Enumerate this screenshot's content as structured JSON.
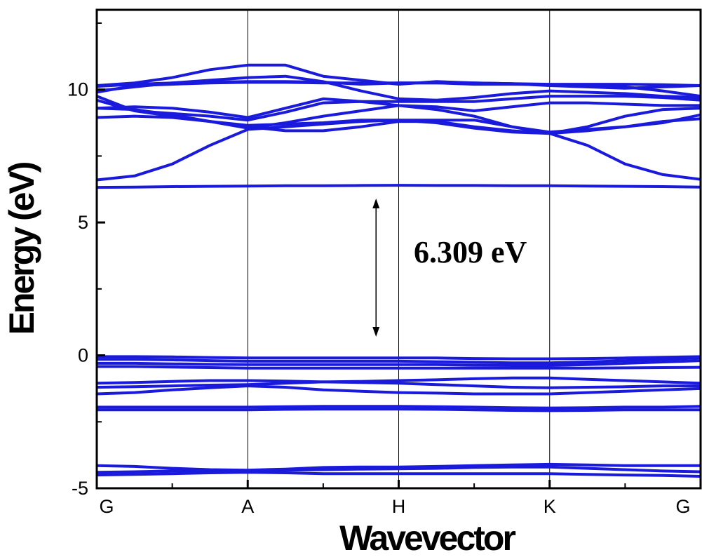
{
  "chart_data": {
    "type": "line",
    "xlabel": "Wavevector",
    "ylabel": "Energy (eV)",
    "x_ticks": [
      "G",
      "A",
      "H",
      "K",
      "G"
    ],
    "x_positions": [
      0,
      1,
      2,
      3,
      4
    ],
    "ylim": [
      -5,
      13
    ],
    "y_ticks": [
      {
        "value": -5,
        "label": "-5"
      },
      {
        "value": 0,
        "label": "0"
      },
      {
        "value": 5,
        "label": "5"
      },
      {
        "value": 10,
        "label": "10"
      }
    ],
    "grid": "vertical lines at high-symmetry points",
    "line_color": "#1a1adc",
    "annotation": {
      "text": "6.309 eV",
      "arrow_from": 0.7,
      "arrow_to": 5.9,
      "arrow_x": 1.85,
      "text_x": 2.1,
      "text_y": 3.9
    },
    "x": [
      0,
      0.25,
      0.5,
      0.75,
      1,
      1.25,
      1.5,
      1.75,
      2,
      2.25,
      2.5,
      2.75,
      3,
      3.25,
      3.5,
      3.75,
      4
    ],
    "series": [
      {
        "values": [
          -4.5,
          -4.48,
          -4.45,
          -4.42,
          -4.4,
          -4.42,
          -4.45,
          -4.45,
          -4.45,
          -4.45,
          -4.45,
          -4.45,
          -4.45,
          -4.48,
          -4.5,
          -4.52,
          -4.55
        ]
      },
      {
        "values": [
          -4.4,
          -4.38,
          -4.35,
          -4.35,
          -4.35,
          -4.32,
          -4.3,
          -4.28,
          -4.27,
          -4.25,
          -4.22,
          -4.2,
          -4.2,
          -4.25,
          -4.3,
          -4.35,
          -4.38
        ]
      },
      {
        "values": [
          -4.15,
          -4.18,
          -4.25,
          -4.3,
          -4.32,
          -4.28,
          -4.22,
          -4.2,
          -4.2,
          -4.18,
          -4.15,
          -4.12,
          -4.1,
          -4.12,
          -4.15,
          -4.15,
          -4.15
        ]
      },
      {
        "values": [
          -2.05,
          -2.05,
          -2.05,
          -2.05,
          -2.05,
          -2.03,
          -2.02,
          -2.02,
          -2.02,
          -2.03,
          -2.05,
          -2.07,
          -2.08,
          -2.07,
          -2.05,
          -2.05,
          -2.05
        ]
      },
      {
        "values": [
          -1.95,
          -1.95,
          -1.95,
          -1.95,
          -1.95,
          -1.93,
          -1.92,
          -1.92,
          -1.92,
          -1.93,
          -1.95,
          -1.97,
          -1.98,
          -1.97,
          -1.95,
          -1.95,
          -1.92
        ]
      },
      {
        "values": [
          -1.45,
          -1.4,
          -1.3,
          -1.22,
          -1.15,
          -1.2,
          -1.3,
          -1.35,
          -1.4,
          -1.42,
          -1.45,
          -1.45,
          -1.45,
          -1.4,
          -1.35,
          -1.3,
          -1.25
        ]
      },
      {
        "values": [
          -1.2,
          -1.18,
          -1.15,
          -1.12,
          -1.1,
          -1.05,
          -1.0,
          -0.98,
          -0.95,
          -0.92,
          -0.88,
          -0.85,
          -0.85,
          -0.9,
          -0.95,
          -1.0,
          -1.05
        ]
      },
      {
        "values": [
          -1.05,
          -1.02,
          -0.98,
          -0.95,
          -0.95,
          -0.97,
          -1.0,
          -1.02,
          -1.05,
          -1.1,
          -1.15,
          -1.2,
          -1.22,
          -1.2,
          -1.18,
          -1.15,
          -1.15
        ]
      },
      {
        "values": [
          -0.42,
          -0.42,
          -0.44,
          -0.46,
          -0.48,
          -0.48,
          -0.48,
          -0.48,
          -0.48,
          -0.48,
          -0.48,
          -0.48,
          -0.48,
          -0.48,
          -0.47,
          -0.46,
          -0.45
        ]
      },
      {
        "values": [
          -0.3,
          -0.3,
          -0.32,
          -0.34,
          -0.35,
          -0.35,
          -0.35,
          -0.35,
          -0.35,
          -0.35,
          -0.37,
          -0.38,
          -0.38,
          -0.35,
          -0.3,
          -0.25,
          -0.2
        ]
      },
      {
        "values": [
          -0.15,
          -0.15,
          -0.17,
          -0.2,
          -0.22,
          -0.22,
          -0.22,
          -0.22,
          -0.22,
          -0.24,
          -0.26,
          -0.28,
          -0.28,
          -0.25,
          -0.2,
          -0.15,
          -0.1
        ]
      },
      {
        "values": [
          -0.05,
          -0.05,
          -0.06,
          -0.08,
          -0.1,
          -0.1,
          -0.1,
          -0.1,
          -0.1,
          -0.1,
          -0.12,
          -0.13,
          -0.13,
          -0.12,
          -0.1,
          -0.07,
          -0.05
        ]
      },
      {
        "values": [
          6.32,
          6.33,
          6.35,
          6.36,
          6.37,
          6.38,
          6.38,
          6.39,
          6.4,
          6.39,
          6.39,
          6.38,
          6.38,
          6.37,
          6.36,
          6.35,
          6.33
        ]
      },
      {
        "values": [
          6.6,
          6.75,
          7.2,
          7.9,
          8.5,
          8.6,
          8.7,
          8.8,
          8.85,
          8.75,
          8.55,
          8.4,
          8.35,
          7.9,
          7.2,
          6.8,
          6.62
        ]
      },
      {
        "values": [
          8.95,
          9.0,
          8.95,
          8.8,
          8.6,
          8.45,
          8.45,
          8.6,
          8.8,
          8.8,
          8.6,
          8.45,
          8.35,
          8.45,
          8.6,
          8.8,
          8.9
        ]
      },
      {
        "values": [
          9.3,
          9.25,
          9.05,
          8.8,
          8.55,
          8.75,
          9.0,
          9.2,
          9.4,
          9.25,
          9.0,
          8.6,
          8.35,
          8.6,
          9.0,
          9.25,
          9.3
        ]
      },
      {
        "values": [
          9.6,
          9.2,
          9.0,
          8.8,
          8.65,
          8.7,
          8.75,
          8.85,
          8.85,
          8.85,
          8.85,
          8.6,
          8.4,
          8.5,
          8.6,
          8.75,
          9.05
        ]
      },
      {
        "values": [
          9.75,
          9.2,
          9.1,
          9.0,
          8.85,
          9.15,
          9.5,
          9.55,
          9.55,
          9.55,
          9.55,
          9.65,
          9.75,
          9.75,
          9.75,
          9.7,
          9.6
        ]
      },
      {
        "values": [
          9.95,
          10.1,
          10.25,
          10.35,
          10.45,
          10.5,
          10.3,
          9.95,
          9.65,
          9.6,
          9.7,
          9.85,
          9.95,
          9.9,
          9.85,
          9.75,
          9.7
        ]
      },
      {
        "values": [
          10.15,
          10.25,
          10.45,
          10.75,
          10.92,
          10.92,
          10.5,
          10.35,
          10.2,
          10.3,
          10.25,
          10.22,
          10.15,
          10.1,
          10.05,
          10.1,
          10.15
        ]
      },
      {
        "values": [
          10.12,
          10.2,
          10.25,
          10.28,
          10.3,
          10.3,
          10.28,
          10.2,
          10.25,
          10.25,
          10.25,
          10.22,
          10.2,
          10.2,
          10.2,
          10.18,
          10.15
        ]
      },
      {
        "values": [
          9.9,
          10.15,
          10.2,
          10.25,
          10.27,
          10.27,
          10.25,
          10.25,
          10.25,
          10.25,
          10.2,
          10.2,
          10.18,
          10.15,
          10.1,
          9.95,
          9.75
        ]
      },
      {
        "values": [
          9.3,
          9.35,
          9.3,
          9.15,
          8.95,
          9.3,
          9.65,
          9.55,
          9.4,
          9.35,
          9.2,
          9.35,
          9.5,
          9.5,
          9.45,
          9.4,
          9.4
        ]
      }
    ]
  }
}
